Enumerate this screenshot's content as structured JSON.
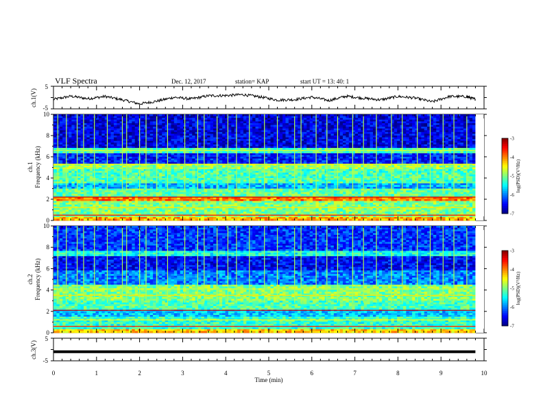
{
  "header": {
    "title": "VLF Spectra",
    "date": "Dec. 12, 2017",
    "station": "station= KAP",
    "start": "start  UT  =   13: 40: 1"
  },
  "chart_data": [
    {
      "type": "line",
      "panel": "ch1-voltage",
      "ylabel": "ch.1(V)",
      "ylim": [
        -5,
        5
      ],
      "y_ticks": [
        "5",
        "-5"
      ],
      "xlim": [
        0,
        10
      ],
      "x_extent": [
        0,
        9.8
      ],
      "series": [
        {
          "color": "#000000",
          "x": [
            0,
            0.4,
            0.8,
            1.2,
            1.6,
            2.0,
            2.4,
            2.8,
            3.2,
            3.6,
            4.0,
            4.4,
            4.8,
            5.2,
            5.6,
            6.0,
            6.4,
            6.8,
            7.2,
            7.6,
            8.0,
            8.4,
            8.8,
            9.2,
            9.6,
            9.8
          ],
          "y": [
            -0.8,
            0.6,
            -0.5,
            0.5,
            -1.0,
            -2.8,
            -1.6,
            0.1,
            -0.6,
            0.8,
            0.9,
            1.3,
            0.3,
            -1.1,
            -0.9,
            0.2,
            -1.3,
            0.6,
            -0.3,
            -1.0,
            0.5,
            -0.2,
            -1.9,
            0.5,
            0.4,
            -0.8
          ]
        }
      ]
    },
    {
      "type": "heatmap",
      "panel": "ch1-spectrogram",
      "ylabel_lines": [
        "ch.1",
        "Frequency (kHz)"
      ],
      "ylim": [
        0,
        10
      ],
      "y_ticks": [
        "0",
        "2",
        "4",
        "6",
        "8",
        "10"
      ],
      "xlim": [
        0,
        10
      ],
      "x_extent": [
        0,
        9.8
      ],
      "colorbar": {
        "label": "log(PSD)(V²/Hz)",
        "range": [
          -7,
          -3
        ],
        "ticks": [
          "-3",
          "-4",
          "-5",
          "-6",
          "-7"
        ]
      },
      "bands_khz": [
        {
          "from": 0.0,
          "to": 0.3,
          "level": -4.2
        },
        {
          "from": 0.3,
          "to": 1.8,
          "level": -5.0
        },
        {
          "from": 1.8,
          "to": 2.2,
          "level": -4.0
        },
        {
          "from": 2.2,
          "to": 3.0,
          "level": -5.1
        },
        {
          "from": 3.0,
          "to": 3.5,
          "level": -5.8
        },
        {
          "from": 3.5,
          "to": 4.8,
          "level": -5.2
        },
        {
          "from": 4.8,
          "to": 5.3,
          "level": -4.9
        },
        {
          "from": 5.3,
          "to": 6.4,
          "level": -6.4
        },
        {
          "from": 6.4,
          "to": 6.8,
          "level": -5.2
        },
        {
          "from": 6.8,
          "to": 10.0,
          "level": -6.6
        }
      ],
      "lines_khz": [
        {
          "f": 2.2,
          "level": -3.3
        },
        {
          "f": 0.5,
          "level": -3.5
        },
        {
          "f": 5.3,
          "level": -4.5
        },
        {
          "f": 6.6,
          "level": -4.6
        },
        {
          "f": 1.2,
          "level": -4.4
        }
      ],
      "impulse_times_min": [
        0.1,
        0.3,
        0.55,
        0.7,
        0.95,
        1.25,
        1.6,
        1.7,
        2.0,
        2.15,
        2.4,
        2.65,
        3.05,
        3.35,
        3.5,
        3.8,
        4.05,
        4.25,
        4.55,
        4.9,
        5.2,
        5.6,
        5.75,
        6.1,
        6.35,
        6.6,
        6.95,
        7.2,
        7.5,
        7.85,
        8.1,
        8.45,
        8.75,
        9.05,
        9.3,
        9.6
      ]
    },
    {
      "type": "heatmap",
      "panel": "ch2-spectrogram",
      "ylabel_lines": [
        "ch.2",
        "Frequency (kHz)"
      ],
      "ylim": [
        0,
        10
      ],
      "y_ticks": [
        "0",
        "2",
        "4",
        "6",
        "8",
        "10"
      ],
      "xlim": [
        0,
        10
      ],
      "x_extent": [
        0,
        9.8
      ],
      "colorbar": {
        "label": "log(PSD)(V²/Hz)",
        "range": [
          -7,
          -3
        ],
        "ticks": [
          "-3",
          "-4",
          "-5",
          "-6",
          "-7"
        ]
      },
      "bands_khz": [
        {
          "from": 0.0,
          "to": 0.4,
          "level": -4.3
        },
        {
          "from": 0.4,
          "to": 1.5,
          "level": -5.3
        },
        {
          "from": 1.5,
          "to": 2.2,
          "level": -5.7
        },
        {
          "from": 2.2,
          "to": 3.0,
          "level": -5.2
        },
        {
          "from": 3.0,
          "to": 4.5,
          "level": -5.0
        },
        {
          "from": 4.5,
          "to": 5.8,
          "level": -6.0
        },
        {
          "from": 5.8,
          "to": 7.2,
          "level": -6.5
        },
        {
          "from": 7.2,
          "to": 7.6,
          "level": -5.4
        },
        {
          "from": 7.6,
          "to": 10.0,
          "level": -6.3
        }
      ],
      "lines_khz": [
        {
          "f": 2.1,
          "level": -3.3
        },
        {
          "f": 0.6,
          "level": -3.6
        },
        {
          "f": 3.5,
          "level": -4.4
        },
        {
          "f": 4.1,
          "level": -4.6
        },
        {
          "f": 1.2,
          "level": -4.5
        }
      ],
      "impulse_times_min": [
        0.1,
        0.3,
        0.55,
        0.7,
        0.95,
        1.25,
        1.6,
        1.7,
        2.0,
        2.15,
        2.4,
        2.65,
        3.05,
        3.35,
        3.5,
        3.8,
        4.05,
        4.25,
        4.55,
        4.9,
        5.2,
        5.6,
        5.75,
        6.1,
        6.35,
        6.6,
        6.95,
        7.2,
        7.5,
        7.85,
        8.1,
        8.45,
        8.75,
        9.05,
        9.3,
        9.6
      ]
    },
    {
      "type": "line",
      "panel": "ch3-voltage",
      "ylabel": "ch.3(V)",
      "ylim": [
        -5,
        5
      ],
      "y_ticks": [
        "5",
        "-5"
      ],
      "xlabel": "Time (min)",
      "xlim": [
        0,
        10
      ],
      "x_ticks": [
        "0",
        "1",
        "2",
        "3",
        "4",
        "5",
        "6",
        "7",
        "8",
        "9",
        "10"
      ],
      "series": [
        {
          "color": "#000000",
          "x": [
            0,
            9.8
          ],
          "y": [
            -1.0,
            -1.0
          ]
        }
      ]
    }
  ]
}
